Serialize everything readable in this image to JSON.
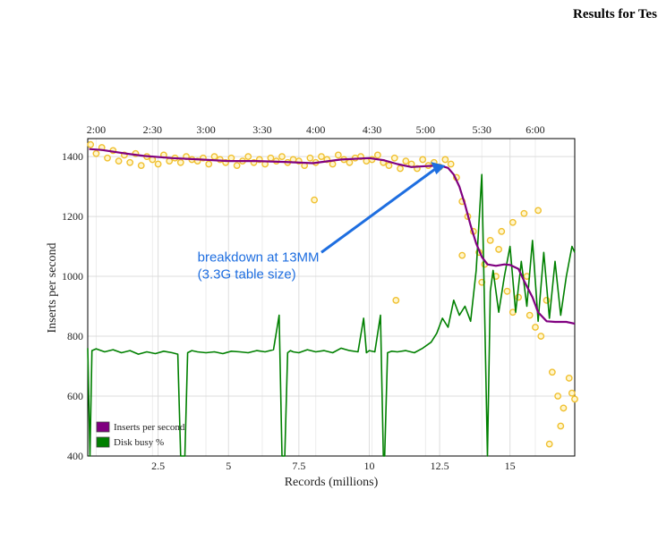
{
  "header": {
    "title": "Results for Tes"
  },
  "chart_data": {
    "type": "line",
    "title": "",
    "xlabel": "Records (millions)",
    "ylabel": "Inserts per second",
    "xlim": [
      0,
      17.3
    ],
    "ylim": [
      400,
      1460
    ],
    "x_ticks": [
      2.5,
      5,
      7.5,
      10,
      12.5,
      15
    ],
    "x_tick_labels": [
      "2.5",
      "5",
      "7.5",
      "10",
      "12.5",
      "15"
    ],
    "y_ticks": [
      400,
      600,
      800,
      1000,
      1200,
      1400
    ],
    "y_tick_labels": [
      "400",
      "600",
      "800",
      "1000",
      "1200",
      "1400"
    ],
    "top_axis_labels": [
      {
        "x": 0.3,
        "label": "2:00"
      },
      {
        "x": 2.3,
        "label": "2:30"
      },
      {
        "x": 4.2,
        "label": "3:00"
      },
      {
        "x": 6.2,
        "label": "3:30"
      },
      {
        "x": 8.1,
        "label": "4:00"
      },
      {
        "x": 10.1,
        "label": "4:30"
      },
      {
        "x": 12.0,
        "label": "5:00"
      },
      {
        "x": 14.0,
        "label": "5:30"
      },
      {
        "x": 15.9,
        "label": "6:00"
      }
    ],
    "grid": true,
    "legend_position": "bottom-left",
    "annotation": {
      "lines": [
        "breakdown at 13MM",
        "(3.3G table size)"
      ],
      "arrow_target": {
        "x": 12.7,
        "y": 1370
      },
      "arrow_source": {
        "x": 8.3,
        "y": 1080
      },
      "text_anchor": {
        "x": 3.9,
        "y": 1050
      }
    },
    "series": [
      {
        "name": "Inserts per second",
        "color": "#800080",
        "x": [
          0.05,
          0.5,
          1.0,
          1.5,
          2.0,
          3.0,
          4.0,
          5.0,
          6.0,
          7.0,
          8.0,
          9.0,
          10.0,
          10.5,
          11.0,
          11.5,
          12.0,
          12.5,
          12.8,
          13.0,
          13.2,
          13.4,
          13.6,
          13.8,
          14.0,
          14.2,
          14.5,
          14.8,
          15.0,
          15.3,
          15.5,
          15.8,
          16.0,
          16.3,
          16.6,
          17.0,
          17.3
        ],
        "values": [
          1425,
          1422,
          1415,
          1408,
          1402,
          1395,
          1390,
          1385,
          1385,
          1382,
          1378,
          1390,
          1395,
          1388,
          1375,
          1365,
          1368,
          1370,
          1362,
          1340,
          1300,
          1240,
          1170,
          1110,
          1065,
          1040,
          1035,
          1040,
          1038,
          1025,
          985,
          930,
          880,
          850,
          848,
          848,
          842
        ]
      },
      {
        "name": "Disk busy %",
        "color": "#008000",
        "x": [
          0.0,
          0.08,
          0.15,
          0.3,
          0.6,
          0.9,
          1.2,
          1.5,
          1.8,
          2.1,
          2.4,
          2.7,
          3.0,
          3.2,
          3.3,
          3.45,
          3.55,
          3.7,
          3.9,
          4.2,
          4.5,
          4.8,
          5.1,
          5.4,
          5.7,
          6.0,
          6.3,
          6.6,
          6.8,
          6.9,
          7.0,
          7.1,
          7.2,
          7.3,
          7.5,
          7.8,
          8.1,
          8.4,
          8.7,
          9.0,
          9.3,
          9.6,
          9.8,
          9.9,
          10.0,
          10.2,
          10.4,
          10.5,
          10.55,
          10.65,
          10.8,
          11.0,
          11.3,
          11.6,
          11.9,
          12.2,
          12.4,
          12.6,
          12.8,
          13.0,
          13.2,
          13.4,
          13.6,
          13.8,
          14.0,
          14.1,
          14.2,
          14.3,
          14.4,
          14.6,
          14.8,
          15.0,
          15.2,
          15.4,
          15.6,
          15.8,
          16.0,
          16.2,
          16.4,
          16.6,
          16.8,
          17.0,
          17.2,
          17.3
        ],
        "values": [
          760,
          400,
          752,
          758,
          748,
          755,
          745,
          752,
          740,
          748,
          742,
          750,
          745,
          740,
          400,
          400,
          745,
          752,
          748,
          745,
          748,
          742,
          750,
          748,
          745,
          752,
          748,
          755,
          870,
          400,
          400,
          745,
          752,
          748,
          745,
          755,
          748,
          752,
          745,
          760,
          752,
          748,
          860,
          745,
          752,
          748,
          870,
          400,
          400,
          745,
          750,
          748,
          752,
          745,
          760,
          780,
          810,
          860,
          830,
          920,
          870,
          900,
          850,
          1020,
          1340,
          870,
          400,
          950,
          1020,
          880,
          1000,
          1100,
          880,
          1050,
          900,
          1120,
          850,
          1080,
          860,
          1050,
          870,
          1000,
          1100,
          1080
        ]
      }
    ],
    "scatter_points": {
      "color": "#f0c030",
      "x": [
        0.1,
        0.3,
        0.5,
        0.7,
        0.9,
        1.1,
        1.3,
        1.5,
        1.7,
        1.9,
        2.1,
        2.3,
        2.5,
        2.7,
        2.9,
        3.1,
        3.3,
        3.5,
        3.7,
        3.9,
        4.1,
        4.3,
        4.5,
        4.7,
        4.9,
        5.1,
        5.3,
        5.5,
        5.7,
        5.9,
        6.1,
        6.3,
        6.5,
        6.7,
        6.9,
        7.1,
        7.3,
        7.5,
        7.7,
        7.9,
        8.1,
        8.3,
        8.5,
        8.7,
        8.9,
        9.1,
        9.3,
        9.5,
        9.7,
        9.9,
        10.1,
        10.3,
        10.5,
        10.7,
        10.9,
        11.1,
        11.3,
        11.5,
        11.7,
        11.9,
        12.1,
        12.3,
        12.5,
        12.7,
        12.9,
        13.1,
        13.3,
        13.5,
        13.7,
        13.9,
        14.1,
        14.3,
        14.5,
        14.7,
        14.9,
        15.1,
        15.3,
        15.5,
        15.7,
        15.9,
        16.1,
        16.3,
        16.5,
        16.7,
        16.9,
        17.1,
        17.3,
        8.05,
        10.95,
        13.3,
        14.0,
        14.6,
        15.1,
        15.6,
        16.0,
        16.4,
        16.8,
        17.2
      ],
      "y": [
        1440,
        1410,
        1430,
        1395,
        1420,
        1385,
        1405,
        1380,
        1410,
        1370,
        1400,
        1390,
        1375,
        1405,
        1385,
        1395,
        1380,
        1400,
        1390,
        1385,
        1395,
        1375,
        1400,
        1390,
        1380,
        1395,
        1370,
        1385,
        1400,
        1380,
        1390,
        1375,
        1395,
        1385,
        1400,
        1380,
        1390,
        1385,
        1370,
        1395,
        1380,
        1400,
        1390,
        1375,
        1405,
        1390,
        1380,
        1395,
        1400,
        1385,
        1390,
        1405,
        1380,
        1370,
        1395,
        1360,
        1385,
        1375,
        1360,
        1390,
        1370,
        1380,
        1365,
        1390,
        1375,
        1330,
        1250,
        1200,
        1150,
        1080,
        1040,
        1120,
        1000,
        1150,
        950,
        1180,
        930,
        1210,
        870,
        830,
        800,
        920,
        680,
        600,
        560,
        660,
        590,
        1255,
        920,
        1070,
        980,
        1090,
        880,
        1000,
        1220,
        440,
        500,
        610
      ]
    }
  }
}
